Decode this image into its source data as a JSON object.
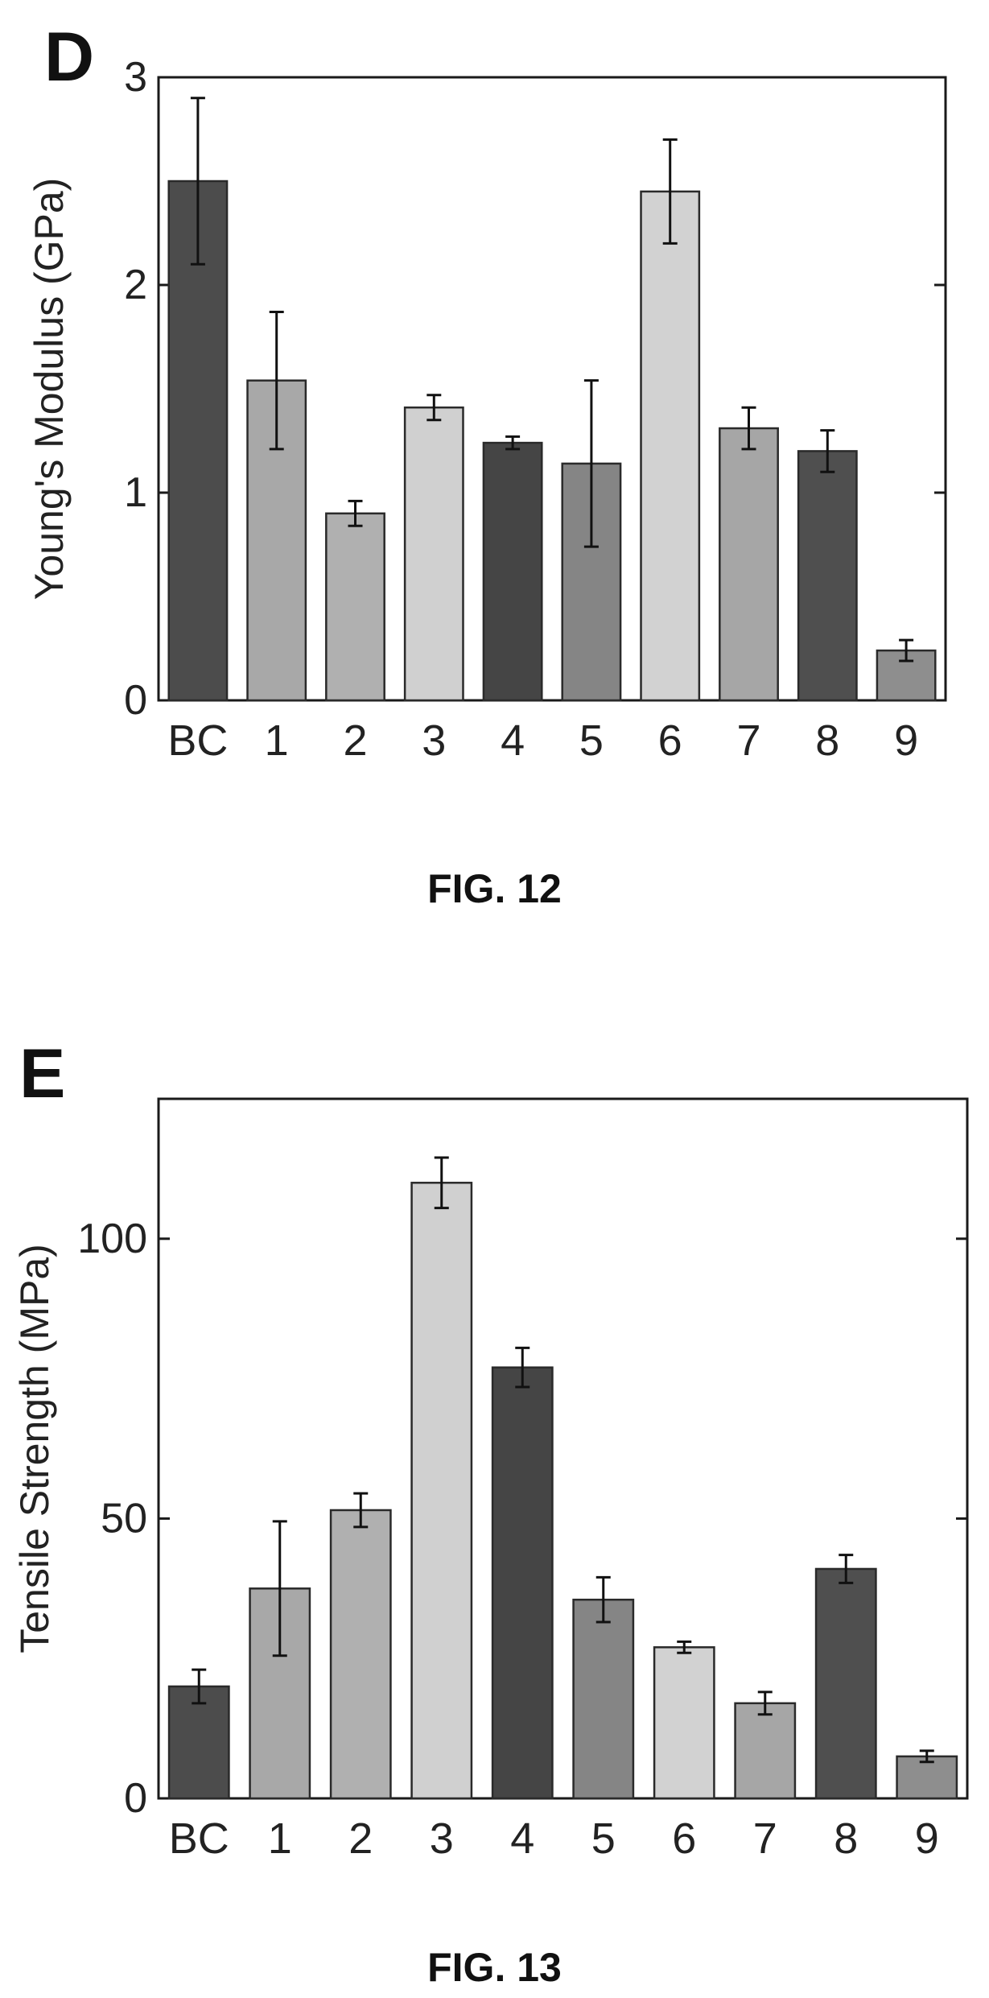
{
  "figures": [
    {
      "caption": "FIG. 12",
      "chart_data": {
        "type": "bar",
        "panel_label": "D",
        "title": "",
        "xlabel": "",
        "ylabel": "Young's Modulus (GPa)",
        "categories": [
          "BC",
          "1",
          "2",
          "3",
          "4",
          "5",
          "6",
          "7",
          "8",
          "9"
        ],
        "values": [
          2.5,
          1.54,
          0.9,
          1.41,
          1.24,
          1.14,
          2.45,
          1.31,
          1.2,
          0.24
        ],
        "errors": [
          0.4,
          0.33,
          0.06,
          0.06,
          0.03,
          0.4,
          0.25,
          0.1,
          0.1,
          0.05
        ],
        "ylim": [
          0,
          3
        ],
        "yticks": [
          0,
          1,
          2,
          3
        ],
        "bar_colors": [
          "#4c4c4c",
          "#a8a8a8",
          "#b0b0b0",
          "#d0d0d0",
          "#454545",
          "#858585",
          "#d2d2d2",
          "#a6a6a6",
          "#4f4f4f",
          "#8e8e8e"
        ],
        "grid": false,
        "legend": "none"
      }
    },
    {
      "caption": "FIG. 13",
      "chart_data": {
        "type": "bar",
        "panel_label": "E",
        "title": "",
        "xlabel": "",
        "ylabel": "Tensile Strength (MPa)",
        "categories": [
          "BC",
          "1",
          "2",
          "3",
          "4",
          "5",
          "6",
          "7",
          "8",
          "9"
        ],
        "values": [
          20,
          37.5,
          51.5,
          110,
          77,
          35.5,
          27,
          17,
          41,
          7.5
        ],
        "errors": [
          3,
          12,
          3,
          4.5,
          3.5,
          4,
          1,
          2,
          2.5,
          1
        ],
        "ylim": [
          0,
          125
        ],
        "yticks": [
          0,
          50,
          100
        ],
        "bar_colors": [
          "#4c4c4c",
          "#a8a8a8",
          "#b0b0b0",
          "#d0d0d0",
          "#454545",
          "#858585",
          "#d2d2d2",
          "#a6a6a6",
          "#4f4f4f",
          "#8e8e8e"
        ],
        "grid": false,
        "legend": "none"
      }
    }
  ]
}
